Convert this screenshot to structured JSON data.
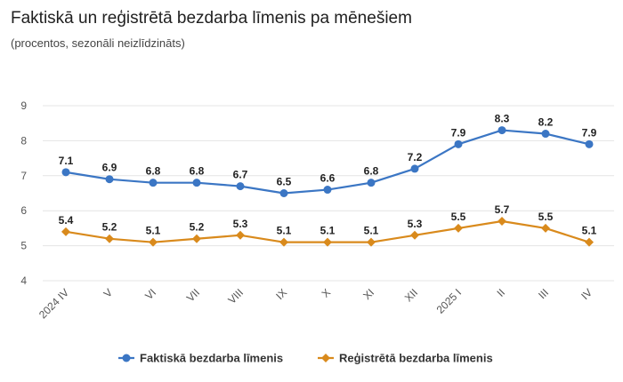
{
  "header": {
    "title": "Faktiskā un reģistrētā bezdarba līmenis pa mēnešiem",
    "subtitle": "(procentos, sezonāli neizlīdzināts)"
  },
  "chart_data": {
    "type": "line",
    "title": "Faktiskā un reģistrētā bezdarba līmenis pa mēnešiem",
    "subtitle": "(procentos, sezonāli neizlīdzināts)",
    "xlabel": "",
    "ylabel": "",
    "categories": [
      "2024 IV",
      "V",
      "VI",
      "VII",
      "VIII",
      "IX",
      "X",
      "XI",
      "XII",
      "2025 I",
      "II",
      "III",
      "IV"
    ],
    "ylim": [
      4,
      9
    ],
    "yticks": [
      4,
      5,
      6,
      7,
      8,
      9
    ],
    "grid": "horizontal",
    "legend_position": "bottom-center",
    "series": [
      {
        "name": "Faktiskā bezdarba līmenis",
        "color": "#3b76c4",
        "marker": "circle",
        "values": [
          7.1,
          6.9,
          6.8,
          6.8,
          6.7,
          6.5,
          6.6,
          6.8,
          7.2,
          7.9,
          8.3,
          8.2,
          7.9
        ],
        "labels": [
          "7.1",
          "6.9",
          "6.8",
          "6.8",
          "6.7",
          "6.5",
          "6.6",
          "6.8",
          "7.2",
          "7.9",
          "8.3",
          "8.2",
          "7.9"
        ]
      },
      {
        "name": "Reģistrētā bezdarba līmenis",
        "color": "#d98a1c",
        "marker": "diamond",
        "values": [
          5.4,
          5.2,
          5.1,
          5.2,
          5.3,
          5.1,
          5.1,
          5.1,
          5.3,
          5.5,
          5.7,
          5.5,
          5.1
        ],
        "labels": [
          "5.4",
          "5.2",
          "5.1",
          "5.2",
          "5.3",
          "5.1",
          "5.1",
          "5.1",
          "5.3",
          "5.5",
          "5.7",
          "5.5",
          "5.1"
        ]
      }
    ]
  }
}
